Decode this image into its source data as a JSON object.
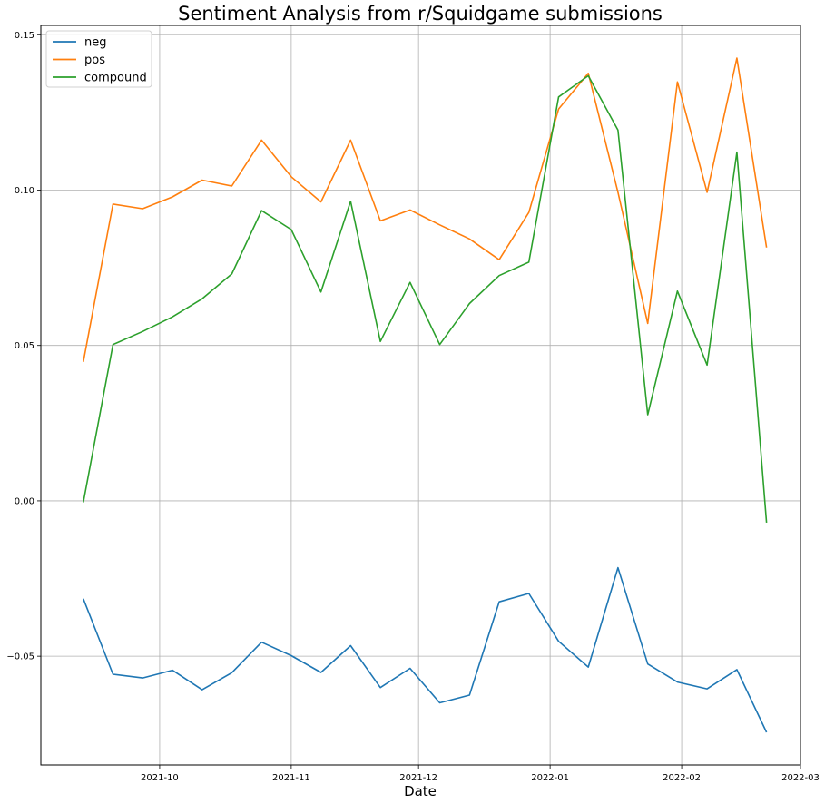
{
  "chart_data": {
    "type": "line",
    "title": "Sentiment Analysis from r/Squidgame submissions",
    "xlabel": "Date",
    "ylabel": "",
    "grid": true,
    "legend_position": "top-left",
    "x": [
      "2021-09-13",
      "2021-09-20",
      "2021-09-27",
      "2021-10-04",
      "2021-10-11",
      "2021-10-18",
      "2021-10-25",
      "2021-11-01",
      "2021-11-08",
      "2021-11-15",
      "2021-11-22",
      "2021-11-29",
      "2021-12-06",
      "2021-12-13",
      "2021-12-20",
      "2021-12-27",
      "2022-01-03",
      "2022-01-10",
      "2022-01-17",
      "2022-01-24",
      "2022-01-31",
      "2022-02-07",
      "2022-02-14",
      "2022-02-21"
    ],
    "x_ticks": [
      "2021-10",
      "2021-11",
      "2021-12",
      "2022-01",
      "2022-02",
      "2022-03"
    ],
    "x_tick_dates": [
      "2021-10-01",
      "2021-11-01",
      "2021-12-01",
      "2022-01-01",
      "2022-02-01",
      "2022-03-01"
    ],
    "xlim": [
      "2021-09-03",
      "2022-03-01"
    ],
    "y_ticks": [
      "−0.05",
      "0.00",
      "0.05",
      "0.10",
      "0.15"
    ],
    "y_tick_values": [
      -0.05,
      0.0,
      0.05,
      0.1,
      0.15
    ],
    "ylim": [
      -0.085,
      0.153
    ],
    "series": [
      {
        "name": "neg",
        "color": "#1f77b4",
        "values": [
          -0.0315,
          -0.0558,
          -0.057,
          -0.0545,
          -0.0608,
          -0.0553,
          -0.0455,
          -0.0498,
          -0.0552,
          -0.0466,
          -0.0601,
          -0.0539,
          -0.065,
          -0.0625,
          -0.0325,
          -0.0298,
          -0.0452,
          -0.0535,
          -0.0215,
          -0.0525,
          -0.0583,
          -0.0605,
          -0.0543,
          -0.0745
        ]
      },
      {
        "name": "pos",
        "color": "#ff7f0e",
        "values": [
          0.0447,
          0.0955,
          0.094,
          0.0978,
          0.1032,
          0.1013,
          0.1161,
          0.1043,
          0.0962,
          0.1161,
          0.0901,
          0.0936,
          0.0888,
          0.0843,
          0.0776,
          0.0928,
          0.1261,
          0.1376,
          0.0993,
          0.0571,
          0.1348,
          0.0993,
          0.1425,
          0.0815
        ]
      },
      {
        "name": "compound",
        "color": "#2ca02c",
        "values": [
          -0.0005,
          0.0503,
          0.0545,
          0.0592,
          0.065,
          0.073,
          0.0934,
          0.0873,
          0.0672,
          0.0964,
          0.0513,
          0.0703,
          0.0503,
          0.0635,
          0.0725,
          0.0768,
          0.13,
          0.1368,
          0.1193,
          0.0277,
          0.0675,
          0.0437,
          0.1122,
          -0.007
        ]
      }
    ]
  }
}
